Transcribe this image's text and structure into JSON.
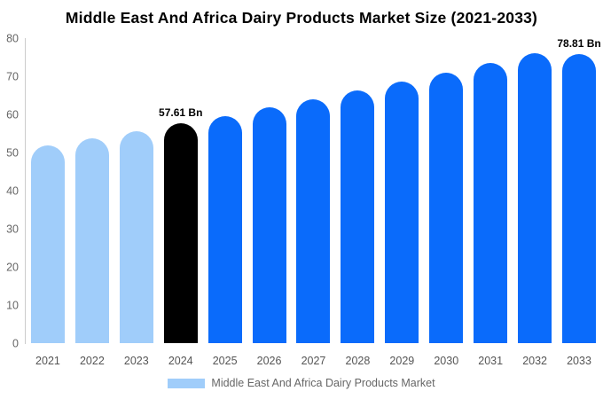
{
  "title": "Middle East And Africa Dairy Products Market Size (2021-2033)",
  "chart_data": {
    "type": "bar",
    "categories": [
      "2021",
      "2022",
      "2023",
      "2024",
      "2025",
      "2026",
      "2027",
      "2028",
      "2029",
      "2030",
      "2031",
      "2032",
      "2033"
    ],
    "values": [
      51.9,
      53.75,
      55.65,
      57.61,
      59.65,
      61.76,
      63.95,
      66.21,
      68.55,
      70.98,
      73.49,
      76.09,
      78.81
    ],
    "unit": "Bn",
    "ylim": [
      0,
      80
    ],
    "yticks": [
      0,
      10,
      20,
      30,
      40,
      50,
      60,
      70,
      80
    ],
    "grid": false,
    "bar_colors": [
      "past",
      "past",
      "past",
      "current",
      "forecast",
      "forecast",
      "forecast",
      "forecast",
      "forecast",
      "forecast",
      "forecast",
      "forecast",
      "forecast"
    ],
    "colors": {
      "past": "#A0CDFA",
      "current": "#000000",
      "forecast": "#0A6BFB",
      "axis": "#cccccc"
    },
    "annotations": [
      {
        "category": "2024",
        "text": "57.61 Bn"
      },
      {
        "category": "2033",
        "text": "78.81 Bn"
      }
    ],
    "legend": {
      "label": "Middle East And Africa Dairy Products Market",
      "swatch": "#A0CDFA"
    }
  }
}
